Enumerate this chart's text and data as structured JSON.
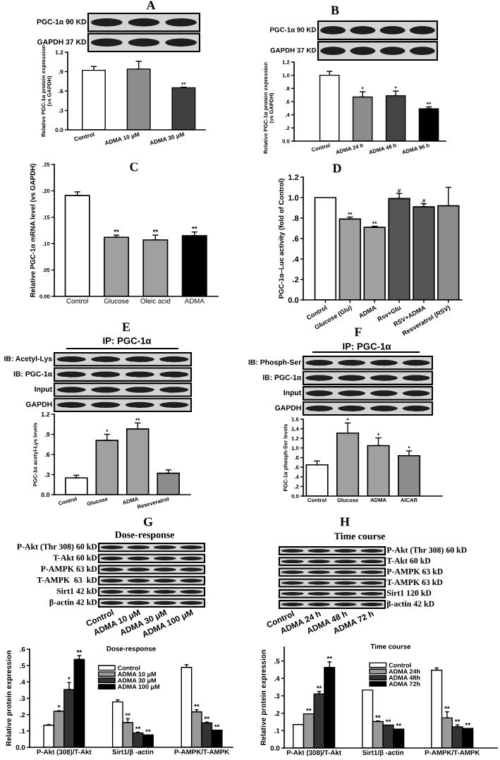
{
  "chart_data": [
    {
      "type": "other",
      "title": "A",
      "y_categories": [
        "PGC-1α 90 KD",
        "GAPDH 37 KD"
      ]
    },
    {
      "type": "bar",
      "ylabel": "Relative PGC-1α protein expression\n(vs GAPDH)",
      "categories": [
        "Control",
        "ADMA 10 μM",
        "ADMA 30 μM"
      ],
      "values": [
        0.92,
        0.94,
        0.65
      ],
      "colors": [
        "#ffffff",
        "#8c8c8c",
        "#404040"
      ],
      "errors": [
        [
          0.92,
          0.98
        ],
        [
          0.94,
          1.06
        ],
        [
          0.65,
          0.66
        ]
      ],
      "value_labels": [
        null,
        null,
        "**"
      ],
      "ylim": [
        0,
        1.2
      ],
      "yticks": [
        {
          "value": 0,
          "label": "0.0"
        },
        {
          "value": 0.3,
          "label": ".3"
        },
        {
          "value": 0.6,
          "label": ".6"
        },
        {
          "value": 0.9,
          "label": ".9"
        },
        {
          "value": 1.2,
          "label": "1.2"
        }
      ]
    },
    {
      "type": "other",
      "title": "B",
      "y_categories": [
        "PGC-1α 90 KD",
        "GAPDH 37 KD"
      ]
    },
    {
      "type": "bar",
      "ylabel": "Relative PGC-1α protein expression\n(vs GAPDH)",
      "categories": [
        "Control",
        "ADMA 24 h",
        "ADMA 48 h",
        "ADMA 96 h"
      ],
      "values": [
        1.0,
        0.67,
        0.69,
        0.49
      ],
      "colors": [
        "#ffffff",
        "#8c8c8c",
        "#444444",
        "#000000"
      ],
      "errors": [
        [
          1.0,
          1.06
        ],
        [
          0.67,
          0.75
        ],
        [
          0.69,
          0.76
        ],
        [
          0.49,
          0.52
        ]
      ],
      "value_labels": [
        null,
        "*",
        "*",
        "**"
      ],
      "ylim": [
        0,
        1.2
      ],
      "yticks": [
        {
          "value": 0,
          "label": "0.0"
        },
        {
          "value": 0.2,
          "label": ".2"
        },
        {
          "value": 0.4,
          "label": ".4"
        },
        {
          "value": 0.6,
          "label": ".6"
        },
        {
          "value": 0.8,
          "label": ".8"
        },
        {
          "value": 1.0,
          "label": "1.0"
        },
        {
          "value": 1.2,
          "label": "1.2"
        }
      ]
    },
    {
      "type": "bar",
      "title": "C",
      "ylabel": "Relative PGC-1α mRNA level (vs GAPDH)",
      "categories": [
        "Control",
        "Glucose",
        "Oleic acid",
        "ADMA"
      ],
      "values": [
        0.191,
        0.112,
        0.107,
        0.115
      ],
      "colors": [
        "#ffffff",
        "#a0a0a0",
        "#a0a0a0",
        "#000000"
      ],
      "errors": [
        [
          0.191,
          0.198
        ],
        [
          0.112,
          0.116
        ],
        [
          0.107,
          0.116
        ],
        [
          0.115,
          0.122
        ]
      ],
      "value_labels": [
        null,
        "**",
        "**",
        "**"
      ],
      "ylim": [
        0,
        0.25
      ],
      "yticks": [
        {
          "value": 0,
          "label": "0.00"
        },
        {
          "value": 0.05,
          "label": ".05"
        },
        {
          "value": 0.1,
          "label": ".10"
        },
        {
          "value": 0.15,
          "label": ".15"
        },
        {
          "value": 0.2,
          "label": ".20"
        },
        {
          "value": 0.25,
          "label": ".25"
        }
      ]
    },
    {
      "type": "bar",
      "title": "D",
      "ylabel": "PGC-1α–Luc activity (fold of Control)",
      "categories": [
        "Control",
        "Glucose (Glu)",
        "ADMA",
        "Rsv+Glu",
        "RSV+ADMA",
        "Resveratrol (RSV)"
      ],
      "values": [
        1.0,
        0.79,
        0.71,
        0.99,
        0.91,
        0.92
      ],
      "colors": [
        "#ffffff",
        "#a0a0a0",
        "#a0a0a0",
        "#555555",
        "#555555",
        "#8c8c8c"
      ],
      "errors": [
        null,
        [
          0.79,
          0.81
        ],
        [
          0.71,
          0.72
        ],
        [
          0.99,
          1.04
        ],
        [
          0.91,
          0.94
        ],
        [
          0.92,
          1.1
        ]
      ],
      "value_labels": [
        null,
        "**",
        "**",
        "#",
        "#",
        null
      ],
      "ylim": [
        0,
        1.2
      ],
      "yticks": [
        {
          "value": 0,
          "label": "0.0"
        },
        {
          "value": 0.2,
          "label": ".2"
        },
        {
          "value": 0.4,
          "label": ".4"
        },
        {
          "value": 0.6,
          "label": ".6"
        },
        {
          "value": 0.8,
          "label": ".8"
        },
        {
          "value": 1.0,
          "label": "1.0"
        },
        {
          "value": 1.2,
          "label": "1.2"
        }
      ]
    },
    {
      "type": "other",
      "title": "E",
      "subtitle": "IP: PGC-1α",
      "y_categories": [
        "IB: Acetyl-Lys",
        "IB: PGC-1α",
        "Input",
        "GAPDH"
      ]
    },
    {
      "type": "bar",
      "ylabel": "PGC-1α acetyl-Lys levels",
      "categories": [
        "Control",
        "Glucose",
        "ADMA",
        "Reseveratrol"
      ],
      "values": [
        0.25,
        0.81,
        0.98,
        0.32
      ],
      "colors": [
        "#ffffff",
        "#a0a0a0",
        "#a0a0a0",
        "#8c8c8c"
      ],
      "errors": [
        [
          0.25,
          0.29
        ],
        [
          0.81,
          0.9
        ],
        [
          0.98,
          1.07
        ],
        [
          0.32,
          0.37
        ]
      ],
      "value_labels": [
        null,
        "*",
        "**",
        null
      ],
      "ylim": [
        0,
        1.2
      ],
      "yticks": [
        {
          "value": 0,
          "label": "0.0"
        },
        {
          "value": 0.3,
          "label": ".3"
        },
        {
          "value": 0.6,
          "label": ".6"
        },
        {
          "value": 0.9,
          "label": ".9"
        },
        {
          "value": 1.2,
          "label": "1.2"
        }
      ]
    },
    {
      "type": "other",
      "title": "F",
      "subtitle": "IP: PGC-1α",
      "y_categories": [
        "IB: Phosph-Ser",
        "IB: PGC-1α",
        "Input",
        "GAPDH"
      ]
    },
    {
      "type": "bar",
      "ylabel": "PGC-1α phosph-Ser levels",
      "categories": [
        "Control",
        "Glucose",
        "ADMA",
        "AICAR"
      ],
      "values": [
        0.65,
        1.31,
        1.05,
        0.84
      ],
      "colors": [
        "#ffffff",
        "#a0a0a0",
        "#a0a0a0",
        "#8c8c8c"
      ],
      "errors": [
        [
          0.65,
          0.73
        ],
        [
          1.31,
          1.52
        ],
        [
          1.05,
          1.21
        ],
        [
          0.84,
          0.94
        ]
      ],
      "value_labels": [
        null,
        "*",
        "*",
        "*"
      ],
      "ylim": [
        0,
        1.6
      ],
      "yticks": [
        {
          "value": 0,
          "label": "0.0"
        },
        {
          "value": 0.2,
          "label": ".2"
        },
        {
          "value": 0.4,
          "label": ".4"
        },
        {
          "value": 0.6,
          "label": ".6"
        },
        {
          "value": 0.8,
          "label": ".8"
        },
        {
          "value": 1.0,
          "label": "1.0"
        },
        {
          "value": 1.2,
          "label": "1.2"
        },
        {
          "value": 1.4,
          "label": "1.4"
        },
        {
          "value": 1.6,
          "label": "1.6"
        }
      ]
    },
    {
      "type": "other",
      "title": "G",
      "subtitle": "Dose-response",
      "categories": [
        "Control",
        "ADMA 10 μM",
        "ADMA 30 μM",
        "ADMA 100 μM"
      ],
      "y_categories": [
        "P-Akt (Thr 308) 60 kD",
        "T-Akt 60 kD",
        "P-AMPK 63 kD",
        "T-AMPK  63  kD",
        "Sirt1 42 kD",
        "β-actin 42 kD"
      ]
    },
    {
      "type": "bar",
      "subtitle": "Dose-response",
      "ylabel": "Relative protein expression",
      "categories": [
        "P-Akt (308)/T-Akt",
        "Sirt1/β -actin",
        "P-AMPK/T-AMPK"
      ],
      "series": [
        {
          "name": "Control",
          "color": "#ffffff",
          "values": [
            0.135,
            0.278,
            0.489
          ],
          "errors": [
            [
              0.135,
              0.139
            ],
            [
              0.278,
              0.29
            ],
            [
              0.489,
              0.505
            ]
          ]
        },
        {
          "name": "ADMA 10 μM",
          "color": "#999999",
          "values": [
            0.22,
            0.151,
            0.217
          ],
          "errors": [
            [
              0.22,
              0.224
            ],
            [
              0.151,
              0.175
            ],
            [
              0.217,
              0.23
            ]
          ],
          "value_labels": [
            "*",
            "**",
            "**"
          ]
        },
        {
          "name": "ADMA 30 μM",
          "color": "#333333",
          "values": [
            0.353,
            0.088,
            0.149
          ],
          "errors": [
            [
              0.353,
              0.396
            ],
            [
              0.088,
              0.093
            ],
            [
              0.149,
              0.154
            ]
          ],
          "value_labels": [
            "*",
            "**",
            "**"
          ]
        },
        {
          "name": "ADMA 100 μM",
          "color": "#000000",
          "values": [
            0.538,
            0.076,
            0.105
          ],
          "errors": [
            [
              0.538,
              0.561
            ],
            null,
            null
          ],
          "value_labels": [
            "**",
            "**",
            "**"
          ]
        }
      ],
      "ylim": [
        0,
        0.6
      ],
      "yticks": [
        {
          "value": 0,
          "label": "0.0"
        },
        {
          "value": 0.1,
          "label": ".1"
        },
        {
          "value": 0.2,
          "label": ".2"
        },
        {
          "value": 0.3,
          "label": ".3"
        },
        {
          "value": 0.4,
          "label": ".4"
        },
        {
          "value": 0.5,
          "label": ".5"
        },
        {
          "value": 0.6,
          "label": ".6"
        }
      ],
      "legend": "top"
    },
    {
      "type": "other",
      "title": "H",
      "subtitle": "Time course",
      "categories": [
        "Control",
        "ADMA 24 h",
        "ADMA 48 h",
        "ADMA 72 h"
      ],
      "y2_categories": [
        "P-Akt (Thr 308) 60 kD",
        "T-Akt 60 kD",
        "P-AMPK 63 kD",
        "T-AMPK 63 kD",
        "Sirt1 120 kD",
        "β-actin 42 kD"
      ]
    },
    {
      "type": "bar",
      "subtitle": "Time course",
      "ylabel": "Relative protein expression",
      "categories": [
        "P-Akt (308)/T-Akt",
        "Sirt1/β -actin",
        "P-AMPK/T-AMPK"
      ],
      "series": [
        {
          "name": "Control",
          "color": "#ffffff",
          "values": [
            0.135,
            0.333,
            0.447
          ],
          "errors": [
            null,
            null,
            [
              0.447,
              0.46
            ]
          ]
        },
        {
          "name": "ADMA 24h",
          "color": "#999999",
          "values": [
            0.196,
            0.152,
            0.173
          ],
          "errors": [
            null,
            [
              0.152,
              0.156
            ],
            [
              0.173,
              0.208
            ]
          ],
          "value_labels": [
            "**",
            "**",
            "**"
          ]
        },
        {
          "name": "ADMA 48h",
          "color": "#333333",
          "values": [
            0.311,
            0.132,
            0.122
          ],
          "errors": [
            [
              0.311,
              0.325
            ],
            null,
            [
              0.122,
              0.133
            ]
          ],
          "value_labels": [
            "**",
            "**",
            "**"
          ]
        },
        {
          "name": "ADMA 72h",
          "color": "#000000",
          "values": [
            0.463,
            0.109,
            0.113
          ],
          "errors": [
            [
              0.463,
              0.495
            ],
            null,
            null
          ],
          "value_labels": [
            "**",
            "**",
            "**"
          ]
        }
      ],
      "ylim": [
        0,
        0.58
      ],
      "yticks": [
        {
          "value": 0,
          "label": "0.0"
        },
        {
          "value": 0.1,
          "label": ".1"
        },
        {
          "value": 0.2,
          "label": ".2"
        },
        {
          "value": 0.3,
          "label": ".3"
        },
        {
          "value": 0.4,
          "label": ".4"
        },
        {
          "value": 0.5,
          "label": ".5"
        }
      ],
      "legend": "top"
    }
  ]
}
